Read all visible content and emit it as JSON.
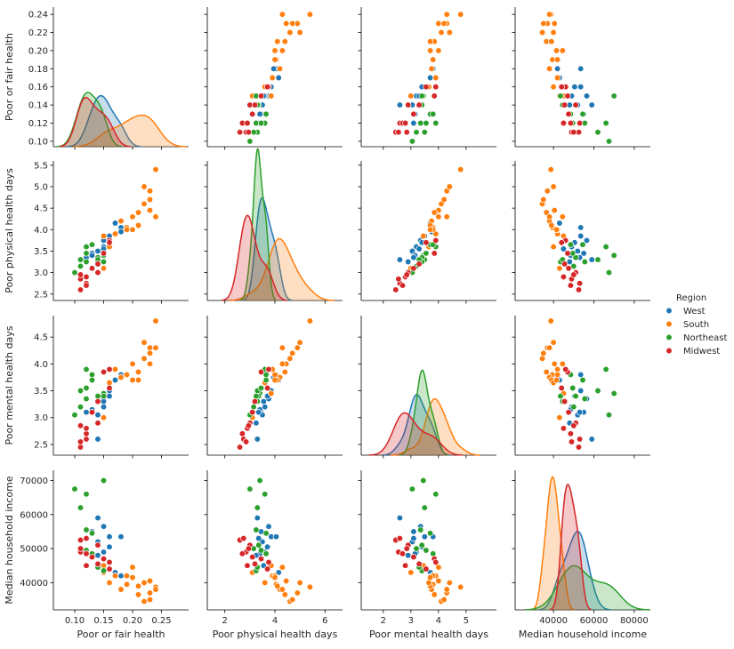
{
  "chart_data": {
    "type": "scatter",
    "layout": "pairplot",
    "hue": "Region",
    "variables": [
      "Poor or fair health",
      "Poor physical health days",
      "Poor mental health days",
      "Median household income"
    ],
    "axis_labels": [
      "Poor or fair health",
      "Poor physical health days",
      "Poor mental health days",
      "Median household income"
    ],
    "ranges": [
      [
        0.063,
        0.297
      ],
      [
        1.3,
        6.7
      ],
      [
        1.2,
        6.1
      ],
      [
        21000,
        88000
      ]
    ],
    "ylims": [
      [
        0.094,
        0.248
      ],
      [
        2.35,
        5.6
      ],
      [
        2.3,
        4.9
      ],
      [
        32000,
        73000
      ]
    ],
    "xticks": [
      {
        "values": [
          0.1,
          0.15,
          0.2,
          0.25
        ],
        "labels": [
          "0.10",
          "0.15",
          "0.20",
          "0.25"
        ]
      },
      {
        "values": [
          2,
          4,
          6
        ],
        "labels": [
          "2",
          "4",
          "6"
        ]
      },
      {
        "values": [
          2,
          3,
          4,
          5
        ],
        "labels": [
          "2",
          "3",
          "4",
          "5"
        ]
      },
      {
        "values": [
          40000,
          60000,
          80000
        ],
        "labels": [
          "40000",
          "60000",
          "80000"
        ]
      }
    ],
    "yticks": [
      {
        "values": [
          0.1,
          0.12,
          0.14,
          0.16,
          0.18,
          0.2,
          0.22,
          0.24
        ],
        "labels": [
          "0.10",
          "0.12",
          "0.14",
          "0.16",
          "0.18",
          "0.20",
          "0.22",
          "0.24"
        ]
      },
      {
        "values": [
          2.5,
          3.0,
          3.5,
          4.0,
          4.5,
          5.0,
          5.5
        ],
        "labels": [
          "2.5",
          "3.0",
          "3.5",
          "4.0",
          "4.5",
          "5.0",
          "5.5"
        ]
      },
      {
        "values": [
          2.5,
          3.0,
          3.5,
          4.0,
          4.5
        ],
        "labels": [
          "2.5",
          "3.0",
          "3.5",
          "4.0",
          "4.5"
        ]
      },
      {
        "values": [
          40000,
          50000,
          60000,
          70000
        ],
        "labels": [
          "40000",
          "50000",
          "60000",
          "70000"
        ]
      }
    ],
    "diag_kde_max": [
      50,
      1.6,
      2.4,
      0.00012
    ],
    "legend": {
      "title": "Region",
      "position": "center-right"
    },
    "series": [
      {
        "name": "West",
        "color": "#1f77b4",
        "points": [
          [
            0.14,
            3.3,
            2.6,
            59000
          ],
          [
            0.16,
            3.85,
            3.5,
            53500
          ],
          [
            0.15,
            3.75,
            3.35,
            56500
          ],
          [
            0.13,
            3.45,
            3.1,
            55000
          ],
          [
            0.18,
            4.05,
            3.8,
            53500
          ],
          [
            0.15,
            3.6,
            3.2,
            49000
          ],
          [
            0.14,
            3.5,
            3.05,
            52000
          ],
          [
            0.13,
            3.4,
            3.15,
            48500
          ],
          [
            0.15,
            3.55,
            3.3,
            45000
          ],
          [
            0.17,
            4.15,
            3.7,
            43000
          ],
          [
            0.12,
            3.35,
            3.1,
            53000
          ],
          [
            0.16,
            3.7,
            3.4,
            50500
          ],
          [
            0.14,
            3.25,
            2.9,
            48000
          ],
          [
            0.18,
            3.95,
            3.75,
            42000
          ]
        ]
      },
      {
        "name": "South",
        "color": "#ff7f0e",
        "points": [
          [
            0.24,
            5.4,
            4.8,
            38700
          ],
          [
            0.23,
            4.9,
            4.3,
            37000
          ],
          [
            0.22,
            4.6,
            4.1,
            34500
          ],
          [
            0.23,
            4.45,
            4.0,
            40500
          ],
          [
            0.21,
            4.4,
            3.85,
            36500
          ],
          [
            0.19,
            4.05,
            3.8,
            39500
          ],
          [
            0.18,
            4.2,
            3.75,
            38000
          ],
          [
            0.17,
            3.9,
            3.9,
            42000
          ],
          [
            0.2,
            4.3,
            4.0,
            44500
          ],
          [
            0.22,
            5.0,
            4.4,
            40000
          ],
          [
            0.23,
            4.7,
            4.2,
            35000
          ],
          [
            0.21,
            4.1,
            3.7,
            39000
          ],
          [
            0.19,
            4.0,
            3.8,
            42000
          ],
          [
            0.16,
            3.6,
            3.65,
            40000
          ],
          [
            0.24,
            4.3,
            4.3,
            38000
          ],
          [
            0.2,
            4.0,
            3.7,
            41500
          ],
          [
            0.15,
            3.85,
            3.45,
            45000
          ],
          [
            0.15,
            3.1,
            3.0,
            43000
          ]
        ]
      },
      {
        "name": "Northeast",
        "color": "#2ca02c",
        "points": [
          [
            0.1,
            3.0,
            3.05,
            67500
          ],
          [
            0.15,
            3.4,
            3.45,
            70000
          ],
          [
            0.12,
            3.6,
            3.9,
            66000
          ],
          [
            0.11,
            3.3,
            3.5,
            62000
          ],
          [
            0.12,
            3.25,
            3.35,
            55500
          ],
          [
            0.13,
            3.65,
            3.7,
            54500
          ],
          [
            0.14,
            3.35,
            3.4,
            51000
          ],
          [
            0.11,
            3.15,
            3.2,
            50000
          ],
          [
            0.12,
            3.45,
            3.55,
            49500
          ],
          [
            0.13,
            3.65,
            3.8,
            48500
          ],
          [
            0.15,
            3.25,
            3.4,
            43500
          ],
          [
            0.14,
            3.3,
            3.3,
            44500
          ]
        ]
      },
      {
        "name": "Midwest",
        "color": "#d62728",
        "points": [
          [
            0.11,
            2.6,
            2.45,
            52500
          ],
          [
            0.12,
            2.75,
            2.6,
            53000
          ],
          [
            0.14,
            3.0,
            2.9,
            51000
          ],
          [
            0.11,
            2.85,
            2.55,
            49000
          ],
          [
            0.12,
            2.7,
            2.7,
            48500
          ],
          [
            0.13,
            3.1,
            3.1,
            47500
          ],
          [
            0.15,
            3.45,
            3.85,
            47000
          ],
          [
            0.16,
            3.75,
            3.9,
            46000
          ],
          [
            0.14,
            3.2,
            3.3,
            45500
          ],
          [
            0.12,
            2.9,
            2.8,
            45000
          ],
          [
            0.11,
            2.95,
            2.85,
            50000
          ],
          [
            0.16,
            3.7,
            3.55,
            44000
          ]
        ]
      }
    ]
  }
}
